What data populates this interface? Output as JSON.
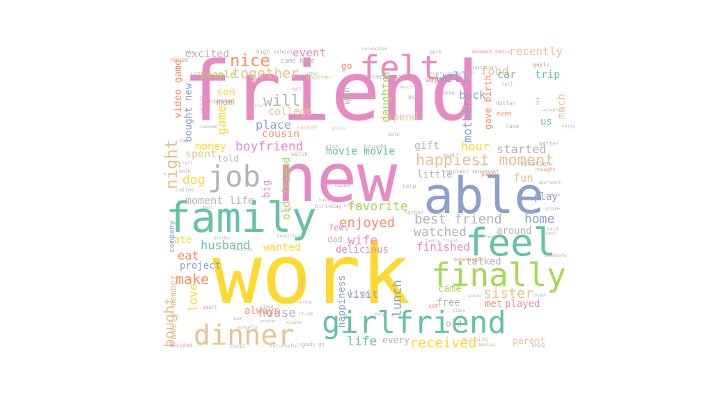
{
  "words": [
    {
      "text": "friend",
      "color": "#e78ac3"
    },
    {
      "text": "work",
      "color": "#ffd92f"
    },
    {
      "text": "new",
      "color": "#e78ac3"
    },
    {
      "text": "family",
      "color": "#66c2a5"
    },
    {
      "text": "able",
      "color": "#8da0cb"
    },
    {
      "text": "girlfriend",
      "color": "#66c2a5"
    },
    {
      "text": "finally",
      "color": "#a6d854"
    },
    {
      "text": "feel",
      "color": "#66c2a5"
    },
    {
      "text": "dinner",
      "color": "#e5c494"
    },
    {
      "text": "job",
      "color": "#b3b3b3"
    },
    {
      "text": "felt",
      "color": "#e78ac3"
    },
    {
      "text": "happiest moment",
      "color": "#e5c494"
    },
    {
      "text": "received",
      "color": "#ffd92f"
    },
    {
      "text": "boyfriend",
      "color": "#e78ac3"
    },
    {
      "text": "husband",
      "color": "#66c2a5"
    },
    {
      "text": "sister",
      "color": "#e5c494"
    },
    {
      "text": "well",
      "color": "#8da0cb"
    },
    {
      "text": "nice",
      "color": "#fc8d62"
    },
    {
      "text": "together",
      "color": "#e5c494"
    },
    {
      "text": "house",
      "color": "#b3b3b3"
    },
    {
      "text": "enjoyed",
      "color": "#fc8d62"
    },
    {
      "text": "best friend",
      "color": "#b3b3b3"
    },
    {
      "text": "favorite",
      "color": "#a6d854"
    },
    {
      "text": "night",
      "color": "#e5c494"
    },
    {
      "text": "make",
      "color": "#fc8d62"
    },
    {
      "text": "bought",
      "color": "#e5c494"
    },
    {
      "text": "home",
      "color": "#8da0cb"
    },
    {
      "text": "mother",
      "color": "#8da0cb"
    },
    {
      "text": "lunch",
      "color": "#8da0cb"
    },
    {
      "text": "hour",
      "color": "#ffd92f"
    },
    {
      "text": "food",
      "color": "#e5c494"
    },
    {
      "text": "watched",
      "color": "#b3b3b3"
    },
    {
      "text": "finished",
      "color": "#e78ac3"
    },
    {
      "text": "wife",
      "color": "#e78ac3"
    },
    {
      "text": "game",
      "color": "#ffd92f"
    },
    {
      "text": "will",
      "color": "#b3b3b3"
    },
    {
      "text": "dog",
      "color": "#ffd92f"
    },
    {
      "text": "life",
      "color": "#66c2a5"
    },
    {
      "text": "place",
      "color": "#8da0cb"
    },
    {
      "text": "started",
      "color": "#b3b3b3"
    },
    {
      "text": "movie movie",
      "color": "#66c2a5"
    },
    {
      "text": "event",
      "color": "#e78ac3"
    },
    {
      "text": "recently",
      "color": "#e5c494"
    },
    {
      "text": "daughter",
      "color": "#a6d854"
    },
    {
      "text": "money",
      "color": "#ffd92f"
    },
    {
      "text": "spent",
      "color": "#e5c494"
    },
    {
      "text": "moment life",
      "color": "#b3b3b3"
    },
    {
      "text": "love",
      "color": "#ffd92f"
    },
    {
      "text": "eat",
      "color": "#fc8d62"
    },
    {
      "text": "ate",
      "color": "#ffd92f"
    },
    {
      "text": "fun",
      "color": "#e5c494"
    },
    {
      "text": "little",
      "color": "#b3b3b3"
    },
    {
      "text": "visit",
      "color": "#8da0cb"
    },
    {
      "text": "much",
      "color": "#e5c494"
    },
    {
      "text": "car",
      "color": "#8da0cb"
    },
    {
      "text": "trip",
      "color": "#66c2a5"
    },
    {
      "text": "back",
      "color": "#8da0cb"
    },
    {
      "text": "excited",
      "color": "#b3b3b3"
    },
    {
      "text": "people",
      "color": "#a6d854"
    },
    {
      "text": "college",
      "color": "#e5c494"
    },
    {
      "text": "cousin",
      "color": "#fc8d62"
    },
    {
      "text": "gift",
      "color": "#b3b3b3"
    },
    {
      "text": "spend",
      "color": "#e5c494"
    },
    {
      "text": "video game",
      "color": "#fc8d62"
    },
    {
      "text": "son",
      "color": "#ffd92f"
    },
    {
      "text": "mom",
      "color": "#b3b3b3"
    },
    {
      "text": "bought new",
      "color": "#8da0cb"
    },
    {
      "text": "told",
      "color": "#b3b3b3"
    },
    {
      "text": "big",
      "color": "#e78ac3"
    },
    {
      "text": "old friend",
      "color": "#a6d854"
    },
    {
      "text": "wanted",
      "color": "#ffd92f"
    },
    {
      "text": "project",
      "color": "#8da0cb"
    },
    {
      "text": "company",
      "color": "#8da0cb"
    },
    {
      "text": "family member",
      "color": "#e5c494"
    },
    {
      "text": "always",
      "color": "#fc8d62"
    },
    {
      "text": "happiness",
      "color": "#8da0cb"
    },
    {
      "text": "live",
      "color": "#b3b3b3"
    },
    {
      "text": "delicious",
      "color": "#e78ac3"
    },
    {
      "text": "dad",
      "color": "#b3b3b3"
    },
    {
      "text": "fews",
      "color": "#e78ac3"
    },
    {
      "text": "talked",
      "color": "#b3b3b3"
    },
    {
      "text": "came",
      "color": "#a6d854"
    },
    {
      "text": "free",
      "color": "#b3b3b3"
    },
    {
      "text": "met",
      "color": "#fc8d62"
    },
    {
      "text": "played",
      "color": "#e78ac3"
    },
    {
      "text": "old",
      "color": "#b3b3b3"
    },
    {
      "text": "every",
      "color": "#b3b3b3"
    },
    {
      "text": "parent",
      "color": "#e5c494"
    },
    {
      "text": "around",
      "color": "#b3b3b3"
    },
    {
      "text": "play",
      "color": "#8da0cb"
    },
    {
      "text": "us",
      "color": "#66c2a5"
    },
    {
      "text": "gave birth",
      "color": "#fc8d62"
    },
    {
      "text": "won",
      "color": "#b3b3b3"
    },
    {
      "text": "go",
      "color": "#fc8d62"
    },
    {
      "text": "conversation",
      "color": "#b3b3b3"
    },
    {
      "text": "another",
      "color": "#e5c494"
    },
    {
      "text": "came home",
      "color": "#b3b3b3"
    },
    {
      "text": "high school",
      "color": "#b3b3b3"
    },
    {
      "text": "surprised",
      "color": "#fc8d62"
    },
    {
      "text": "cooked",
      "color": "#e5c494"
    },
    {
      "text": "happiest movement",
      "color": "#b3b3b3"
    },
    {
      "text": "party",
      "color": "#fc8d62"
    },
    {
      "text": "birthday",
      "color": "#b3b3b3"
    },
    {
      "text": "father",
      "color": "#b3b3b3"
    },
    {
      "text": "help",
      "color": "#b3b3b3"
    },
    {
      "text": "watch",
      "color": "#b3b3b3"
    },
    {
      "text": "give",
      "color": "#b3b3b3"
    },
    {
      "text": "brought",
      "color": "#b3b3b3"
    },
    {
      "text": "way",
      "color": "#fc8d62"
    },
    {
      "text": "boss",
      "color": "#b3b3b3"
    },
    {
      "text": "woke",
      "color": "#b3b3b3"
    },
    {
      "text": "movement family",
      "color": "#e78ac3"
    },
    {
      "text": "restaurant",
      "color": "#b3b3b3"
    },
    {
      "text": "university",
      "color": "#b3b3b3"
    },
    {
      "text": "celebrated",
      "color": "#b3b3b3"
    },
    {
      "text": "park",
      "color": "#b3b3b3"
    },
    {
      "text": "early",
      "color": "#b3b3b3"
    },
    {
      "text": "girl",
      "color": "#e5c494"
    },
    {
      "text": "full",
      "color": "#b3b3b3"
    },
    {
      "text": "dollar",
      "color": "#b3b3b3"
    },
    {
      "text": "even",
      "color": "#fc8d62"
    },
    {
      "text": "take",
      "color": "#b3b3b3"
    },
    {
      "text": "better",
      "color": "#b3b3b3"
    },
    {
      "text": "vacation",
      "color": "#b3b3b3"
    },
    {
      "text": "thought",
      "color": "#fc8d62"
    },
    {
      "text": "store",
      "color": "#b3b3b3"
    },
    {
      "text": "said",
      "color": "#b3b3b3"
    },
    {
      "text": "gym",
      "color": "#b3b3b3"
    },
    {
      "text": "experience",
      "color": "#fc8d62"
    },
    {
      "text": "family friend",
      "color": "#b3b3b3"
    },
    {
      "text": "look",
      "color": "#b3b3b3"
    },
    {
      "text": "asked",
      "color": "#b3b3b3"
    },
    {
      "text": "loved",
      "color": "#b3b3b3"
    },
    {
      "text": "cat",
      "color": "#fc8d62"
    },
    {
      "text": "class",
      "color": "#b3b3b3"
    },
    {
      "text": "morning",
      "color": "#e5c494"
    },
    {
      "text": "special",
      "color": "#b3b3b3"
    },
    {
      "text": "show",
      "color": "#b3b3b3"
    },
    {
      "text": "many",
      "color": "#b3b3b3"
    },
    {
      "text": "think",
      "color": "#b3b3b3"
    },
    {
      "text": "sleep",
      "color": "#b3b3b3"
    },
    {
      "text": "small",
      "color": "#e78ac3"
    },
    {
      "text": "minute",
      "color": "#b3b3b3"
    },
    {
      "text": "local",
      "color": "#b3b3b3"
    },
    {
      "text": "successfully",
      "color": "#b3b3b3"
    },
    {
      "text": "ready go",
      "color": "#b3b3b3"
    },
    {
      "text": "decided",
      "color": "#e78ac3"
    },
    {
      "text": "never",
      "color": "#fc8d62"
    },
    {
      "text": "ticket",
      "color": "#b3b3b3"
    },
    {
      "text": "beautiful",
      "color": "#b3b3b3"
    },
    {
      "text": "brother",
      "color": "#b3b3b3"
    },
    {
      "text": "mail",
      "color": "#b3b3b3"
    },
    {
      "text": "called",
      "color": "#b3b3b3"
    },
    {
      "text": "walk",
      "color": "#b3b3b3"
    },
    {
      "text": "call",
      "color": "#b3b3b3"
    },
    {
      "text": "completed",
      "color": "#b3b3b3"
    },
    {
      "text": "needed",
      "color": "#b3b3b3"
    },
    {
      "text": "hava",
      "color": "#b3b3b3"
    },
    {
      "text": "online",
      "color": "#b3b3b3"
    },
    {
      "text": "workon",
      "color": "#b3b3b3"
    },
    {
      "text": "helped",
      "color": "#b3b3b3"
    },
    {
      "text": "paid",
      "color": "#b3b3b3"
    },
    {
      "text": "plan",
      "color": "#b3b3b3"
    },
    {
      "text": "sale",
      "color": "#b3b3b3"
    },
    {
      "text": "buy",
      "color": "#b3b3b3"
    },
    {
      "text": "start",
      "color": "#b3b3b3"
    },
    {
      "text": "half",
      "color": "#b3b3b3"
    },
    {
      "text": "music",
      "color": "#b3b3b3"
    },
    {
      "text": "managed",
      "color": "#b3b3b3"
    },
    {
      "text": "kid",
      "color": "#b3b3b3"
    },
    {
      "text": "accepted",
      "color": "#b3b3b3"
    },
    {
      "text": "date",
      "color": "#b3b3b3"
    },
    {
      "text": "run",
      "color": "#b3b3b3"
    },
    {
      "text": "next",
      "color": "#b3b3b3"
    },
    {
      "text": "pizza",
      "color": "#b3b3b3"
    },
    {
      "text": "learned",
      "color": "#b3b3b3"
    },
    {
      "text": "workout",
      "color": "#b3b3b3"
    },
    {
      "text": "coffee",
      "color": "#b3b3b3"
    },
    {
      "text": "left",
      "color": "#b3b3b3"
    },
    {
      "text": "baby",
      "color": "#b3b3b3"
    },
    {
      "text": "town",
      "color": "#b3b3b3"
    },
    {
      "text": "bed",
      "color": "#b3b3b3"
    },
    {
      "text": "actually",
      "color": "#b3b3b3"
    },
    {
      "text": "program",
      "color": "#b3b3b3"
    },
    {
      "text": "apartment",
      "color": "#b3b3b3"
    },
    {
      "text": "celebrate",
      "color": "#b3b3b3"
    },
    {
      "text": "enjoy",
      "color": "#b3b3b3"
    }
  ]
}
